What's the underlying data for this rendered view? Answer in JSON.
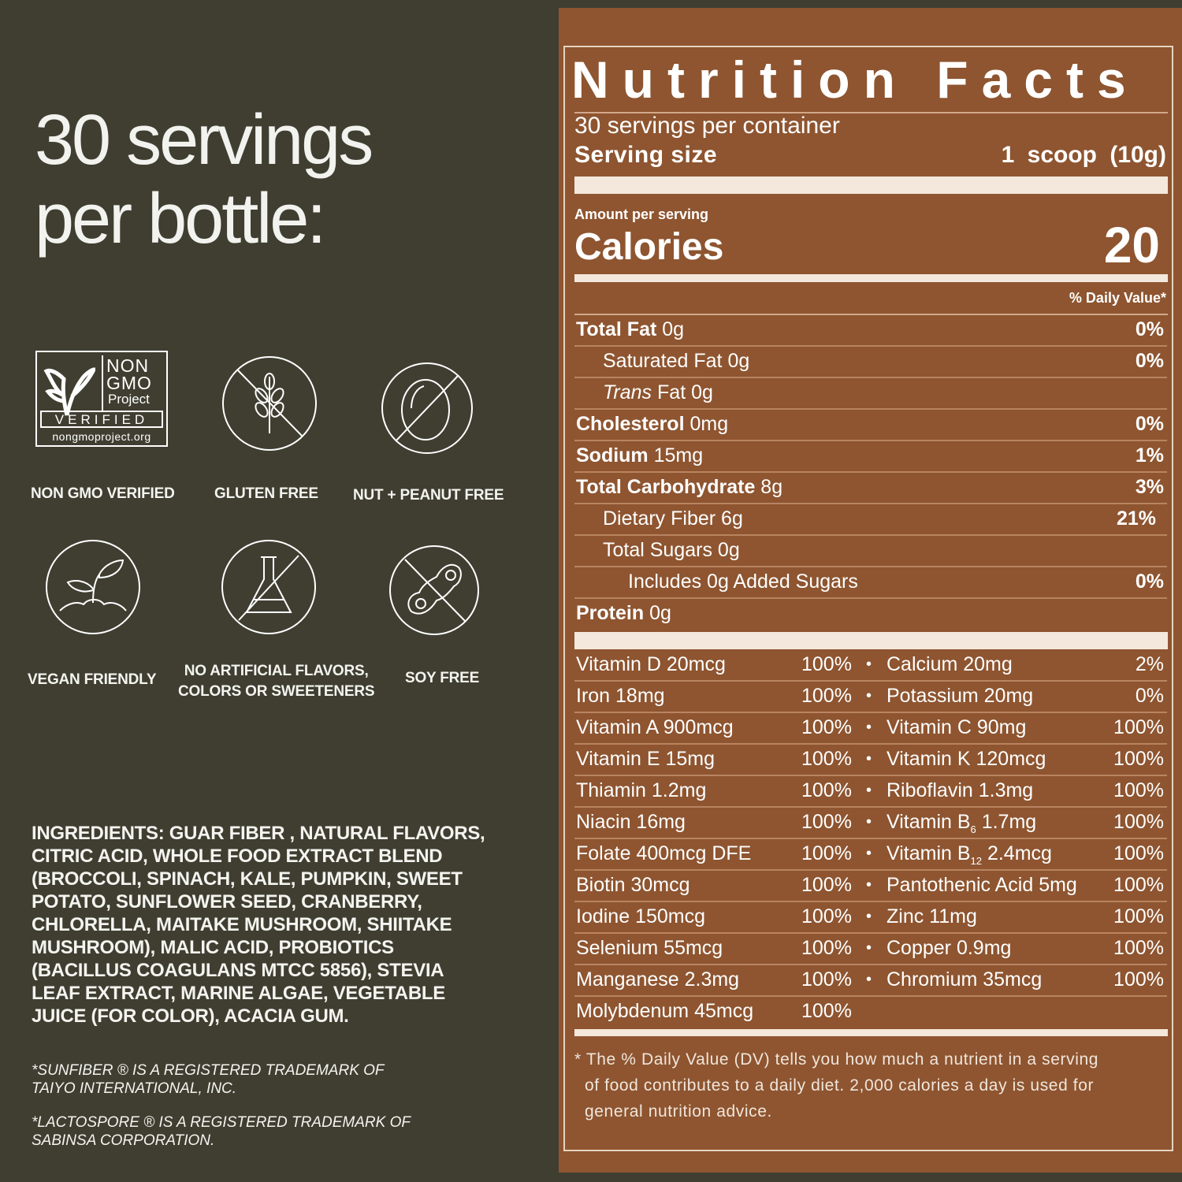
{
  "headline": {
    "line1": "30 servings",
    "line2": "per bottle:"
  },
  "badges": {
    "nongmo": {
      "label": "NON GMO VERIFIED",
      "logo": {
        "non": "NON",
        "gmo": "GMO",
        "project": "Project",
        "verified": "VERIFIED",
        "url": "nongmoproject.org"
      },
      "icon": "non-gmo-butterfly-icon"
    },
    "gluten": {
      "label": "GLUTEN FREE",
      "icon": "wheat-crossed-icon"
    },
    "nut": {
      "label": "NUT + PEANUT FREE",
      "icon": "nut-crossed-icon"
    },
    "vegan": {
      "label": "VEGAN FRIENDLY",
      "icon": "sprout-icon"
    },
    "artificial": {
      "label1": "NO ARTIFICIAL FLAVORS,",
      "label2": "COLORS OR SWEETENERS",
      "icon": "flask-crossed-icon"
    },
    "soy": {
      "label": "SOY FREE",
      "icon": "soybean-crossed-icon"
    }
  },
  "ingredients": [
    "INGREDIENTS: GUAR FIBER , NATURAL FLAVORS,",
    "CITRIC ACID, WHOLE FOOD EXTRACT BLEND",
    "(BROCCOLI, SPINACH, KALE, PUMPKIN, SWEET",
    "POTATO, SUNFLOWER SEED, CRANBERRY,",
    "CHLORELLA, MAITAKE MUSHROOM, SHIITAKE",
    "MUSHROOM), MALIC ACID, PROBIOTICS",
    "(BACILLUS COAGULANS MTCC 5856), STEVIA",
    "LEAF EXTRACT, MARINE ALGAE, VEGETABLE",
    "JUICE (FOR COLOR), ACACIA GUM."
  ],
  "trademarks": {
    "sunfiber": [
      "*SUNFIBER ® IS A REGISTERED TRADEMARK OF",
      "TAIYO INTERNATIONAL, INC."
    ],
    "lactospore": [
      "*LACTOSPORE ® IS A REGISTERED TRADEMARK OF",
      "SABINSA CORPORATION."
    ]
  },
  "nutrition": {
    "title": "Nutrition Facts",
    "servings_per_container": "30 servings per container",
    "serving_size_label": "Serving size",
    "serving_size_value": "1 scoop (10g)",
    "amount_per_serving": "Amount per serving",
    "calories_label": "Calories",
    "calories_value": "20",
    "daily_value_header": "% Daily Value*",
    "rows": [
      {
        "name": "Total Fat",
        "amount": "0g",
        "dv": "0%"
      },
      {
        "name": "Saturated Fat",
        "amount": "0g",
        "dv": "0%"
      },
      {
        "name": "Trans",
        "amount": "Fat 0g",
        "dv": ""
      },
      {
        "name": "Cholesterol",
        "amount": "0mg",
        "dv": "0%"
      },
      {
        "name": "Sodium",
        "amount": "15mg",
        "dv": "1%"
      },
      {
        "name": "Total Carbohydrate",
        "amount": "8g",
        "dv": "3%"
      },
      {
        "name": "Dietary Fiber",
        "amount": "6g",
        "dv": "21%"
      },
      {
        "name": "Total Sugars",
        "amount": "0g",
        "dv": ""
      },
      {
        "name": "Includes 0g Added Sugars",
        "amount": "",
        "dv": "0%"
      },
      {
        "name": "Protein",
        "amount": "0g",
        "dv": ""
      }
    ],
    "vitamins": [
      {
        "l": "Vitamin D 20mcg",
        "lv": "100%",
        "r": "Calcium 20mg",
        "rv": "2%"
      },
      {
        "l": "Iron 18mg",
        "lv": "100%",
        "r": "Potassium 20mg",
        "rv": "0%"
      },
      {
        "l": "Vitamin A 900mcg",
        "lv": "100%",
        "r": "Vitamin C 90mg",
        "rv": "100%"
      },
      {
        "l": "Vitamin E 15mg",
        "lv": "100%",
        "r": "Vitamin K 120mcg",
        "rv": "100%"
      },
      {
        "l": "Thiamin 1.2mg",
        "lv": "100%",
        "r": "Riboflavin 1.3mg",
        "rv": "100%"
      },
      {
        "l": "Niacin 16mg",
        "lv": "100%",
        "r": "Vitamin B",
        "rsub": "6",
        "rrest": " 1.7mg",
        "rv": "100%"
      },
      {
        "l": "Folate 400mcg DFE",
        "lv": "100%",
        "r": "Vitamin B",
        "rsub": "12",
        "rrest": " 2.4mcg",
        "rv": "100%"
      },
      {
        "l": "Biotin 30mcg",
        "lv": "100%",
        "r": "Pantothenic Acid 5mg",
        "rv": "100%"
      },
      {
        "l": "Iodine 150mcg",
        "lv": "100%",
        "r": "Zinc 11mg",
        "rv": "100%"
      },
      {
        "l": "Selenium 55mcg",
        "lv": "100%",
        "r": "Copper 0.9mg",
        "rv": "100%"
      },
      {
        "l": "Manganese 2.3mg",
        "lv": "100%",
        "r": "Chromium 35mcg",
        "rv": "100%"
      },
      {
        "l": "Molybdenum 45mcg",
        "lv": "100%",
        "r": "",
        "rv": ""
      }
    ],
    "footnote": [
      "* The % Daily Value (DV) tells you how much a nutrient in a serving",
      "of food contributes to a daily diet. 2,000 calories a day is used for",
      "general nutrition advice."
    ]
  }
}
